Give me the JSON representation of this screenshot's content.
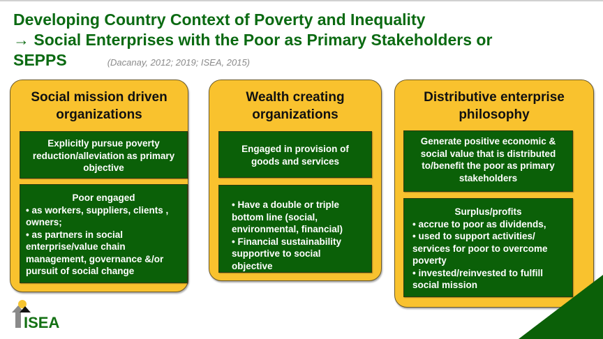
{
  "title": {
    "line1": "Developing Country Context of Poverty and Inequality",
    "line2": "→ Social Enterprises with the Poor as Primary Stakeholders or",
    "line3": "SEPPS",
    "citation": "(Dacanay, 2012; 2019; ISEA, 2015)"
  },
  "panels": [
    {
      "heading": "Social mission driven organizations",
      "box1": "Explicitly pursue poverty reduction/alleviation as primary objective",
      "box2": {
        "heading": "Poor  engaged",
        "lines": [
          "• as workers, suppliers, clients , owners;",
          "• as partners in social enterprise/value chain management, governance &/or pursuit of social change"
        ]
      }
    },
    {
      "heading": "Wealth creating organizations",
      "box1": "Engaged in provision of goods and services",
      "box2": {
        "lines": [
          "• Have a double or triple bottom line (social, environmental, financial)",
          "• Financial sustainability supportive to social objective"
        ]
      }
    },
    {
      "heading": "Distributive enterprise philosophy",
      "box1": "Generate positive economic & social value that is distributed to/benefit the poor as primary stakeholders",
      "box2": {
        "heading": "Surplus/profits",
        "lines": [
          "• accrue to poor as dividends,",
          "• used to support activities/ services for poor to overcome poverty",
          "• invested/reinvested to fulfill social mission"
        ]
      }
    }
  ],
  "logo": {
    "text": "ISEA"
  },
  "colors": {
    "green": "#0b6008",
    "yellow": "#f9c22e",
    "title_green": "#0b6a12"
  }
}
